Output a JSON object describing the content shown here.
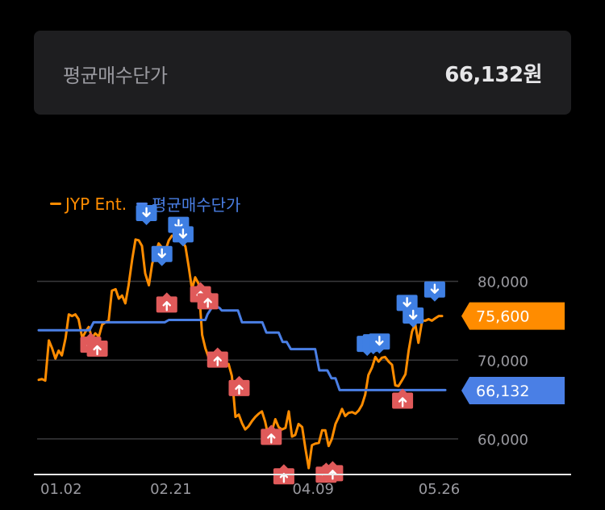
{
  "summary": {
    "label": "평균매수단가",
    "value": "66,132원"
  },
  "chart_data": {
    "type": "line",
    "title": "",
    "xlabel": "",
    "ylabel": "",
    "ylim": [
      56000,
      86000
    ],
    "x_range": [
      0,
      100
    ],
    "y_ticks": [
      {
        "value": 80000,
        "label": "80,000"
      },
      {
        "value": 70000,
        "label": "70,000"
      },
      {
        "value": 60000,
        "label": "60,000"
      }
    ],
    "x_ticks": [
      {
        "x": 0,
        "label": "01.02"
      },
      {
        "x": 27,
        "label": "02.21"
      },
      {
        "x": 62,
        "label": "04.09"
      },
      {
        "x": 93,
        "label": "05.26"
      }
    ],
    "grid": true,
    "legend_position": "top-left",
    "series": [
      {
        "name": "JYP Ent.",
        "color": "#ff8c00",
        "points": [
          [
            0,
            67500
          ],
          [
            0.8,
            67600
          ],
          [
            1.6,
            67400
          ],
          [
            2.5,
            72500
          ],
          [
            3.3,
            71500
          ],
          [
            4.1,
            70200
          ],
          [
            4.9,
            71200
          ],
          [
            5.7,
            70600
          ],
          [
            6.6,
            72800
          ],
          [
            7.4,
            75800
          ],
          [
            8.2,
            75600
          ],
          [
            9,
            75800
          ],
          [
            9.8,
            75200
          ],
          [
            10.7,
            72800
          ],
          [
            11.5,
            73600
          ],
          [
            12.3,
            74200
          ],
          [
            13.1,
            72800
          ],
          [
            13.9,
            73400
          ],
          [
            14.8,
            73000
          ],
          [
            15.6,
            74500
          ],
          [
            16.4,
            74800
          ],
          [
            17.2,
            75000
          ],
          [
            18,
            78800
          ],
          [
            18.9,
            79000
          ],
          [
            19.7,
            77800
          ],
          [
            20.5,
            78200
          ],
          [
            21.3,
            77200
          ],
          [
            22.1,
            79500
          ],
          [
            23,
            82800
          ],
          [
            23.8,
            85300
          ],
          [
            24.6,
            85200
          ],
          [
            25.4,
            84500
          ],
          [
            26.2,
            81000
          ],
          [
            27.1,
            79500
          ],
          [
            27.9,
            82200
          ],
          [
            28.7,
            83500
          ],
          [
            29.5,
            84800
          ],
          [
            30.3,
            84300
          ],
          [
            31.1,
            83800
          ],
          [
            32,
            85200
          ],
          [
            32.8,
            85800
          ],
          [
            33.6,
            85600
          ],
          [
            34.4,
            86200
          ],
          [
            35.2,
            85200
          ],
          [
            36.1,
            84400
          ],
          [
            36.9,
            81800
          ],
          [
            37.7,
            79000
          ],
          [
            38.5,
            80500
          ],
          [
            39.3,
            79700
          ],
          [
            40.2,
            73200
          ],
          [
            41,
            71500
          ],
          [
            41.8,
            70300
          ],
          [
            42.6,
            70600
          ],
          [
            43.4,
            70200
          ],
          [
            44.3,
            70800
          ],
          [
            45.1,
            70000
          ],
          [
            45.9,
            69400
          ],
          [
            46.7,
            69500
          ],
          [
            47.5,
            68000
          ],
          [
            48.4,
            62800
          ],
          [
            49.2,
            63100
          ],
          [
            50,
            62000
          ],
          [
            50.8,
            61200
          ],
          [
            51.6,
            61600
          ],
          [
            52.5,
            62300
          ],
          [
            53.3,
            62800
          ],
          [
            54.1,
            63200
          ],
          [
            54.9,
            63500
          ],
          [
            55.7,
            62200
          ],
          [
            56.6,
            60000
          ],
          [
            57.4,
            61100
          ],
          [
            58.2,
            62500
          ],
          [
            59,
            61500
          ],
          [
            59.8,
            61200
          ],
          [
            60.7,
            61400
          ],
          [
            61.5,
            63500
          ],
          [
            62.3,
            60300
          ],
          [
            63.1,
            60500
          ],
          [
            63.9,
            61900
          ],
          [
            64.8,
            61500
          ],
          [
            65.6,
            58800
          ],
          [
            66.4,
            56300
          ],
          [
            67.2,
            59200
          ],
          [
            68,
            59400
          ],
          [
            68.9,
            59500
          ],
          [
            69.7,
            61100
          ],
          [
            70.5,
            61100
          ],
          [
            71.3,
            59100
          ],
          [
            72.1,
            60000
          ],
          [
            73,
            61900
          ],
          [
            73.8,
            62800
          ],
          [
            74.6,
            63800
          ],
          [
            75.4,
            62900
          ],
          [
            76.2,
            63300
          ],
          [
            77.1,
            63400
          ],
          [
            77.9,
            63200
          ],
          [
            78.7,
            63600
          ],
          [
            79.5,
            64300
          ],
          [
            80.3,
            65600
          ],
          [
            81.1,
            68100
          ],
          [
            82,
            69100
          ],
          [
            82.8,
            70400
          ],
          [
            83.6,
            69800
          ],
          [
            84.4,
            70300
          ],
          [
            85.2,
            70400
          ],
          [
            86.1,
            69800
          ],
          [
            86.9,
            69400
          ],
          [
            87.7,
            66800
          ],
          [
            88.5,
            66700
          ],
          [
            89.3,
            67400
          ],
          [
            90.2,
            68200
          ],
          [
            91,
            71200
          ],
          [
            91.8,
            73600
          ],
          [
            92.6,
            74600
          ],
          [
            93.4,
            72200
          ],
          [
            94.3,
            75000
          ],
          [
            95.1,
            75000
          ],
          [
            95.9,
            75200
          ],
          [
            96.7,
            75000
          ],
          [
            97.5,
            75300
          ],
          [
            98.4,
            75600
          ],
          [
            99.2,
            75600
          ]
        ]
      },
      {
        "name": "평균매수단가",
        "color": "#4a7fe5",
        "points": [
          [
            0,
            73800
          ],
          [
            12.5,
            73800
          ],
          [
            13.5,
            74800
          ],
          [
            31,
            74800
          ],
          [
            32,
            75100
          ],
          [
            41,
            75100
          ],
          [
            41.5,
            75800
          ],
          [
            42.5,
            76600
          ],
          [
            43.5,
            76900
          ],
          [
            44.5,
            76600
          ],
          [
            45,
            76300
          ],
          [
            49,
            76300
          ],
          [
            50,
            74800
          ],
          [
            55,
            74800
          ],
          [
            56,
            73500
          ],
          [
            59,
            73500
          ],
          [
            60,
            72300
          ],
          [
            61,
            72300
          ],
          [
            62,
            71400
          ],
          [
            68,
            71400
          ],
          [
            69,
            68700
          ],
          [
            71,
            68700
          ],
          [
            72,
            67700
          ],
          [
            73,
            67700
          ],
          [
            74,
            66200
          ],
          [
            100,
            66200
          ]
        ]
      }
    ],
    "markers": [
      {
        "type": "sell",
        "x": 26.5,
        "y": 86000
      },
      {
        "type": "sell",
        "x": 30.3,
        "y": 80800
      },
      {
        "type": "sell",
        "x": 34.4,
        "y": 84500
      },
      {
        "type": "sell",
        "x": 35.5,
        "y": 83300
      },
      {
        "type": "sell",
        "x": 80.8,
        "y": 69400
      },
      {
        "type": "sell",
        "x": 82.3,
        "y": 69600
      },
      {
        "type": "sell",
        "x": 83.8,
        "y": 69700
      },
      {
        "type": "sell",
        "x": 90.6,
        "y": 74600
      },
      {
        "type": "sell",
        "x": 92.1,
        "y": 73000
      },
      {
        "type": "sell",
        "x": 97.4,
        "y": 76300
      },
      {
        "type": "buy",
        "x": 12.8,
        "y": 73700
      },
      {
        "type": "buy",
        "x": 14.4,
        "y": 73200
      },
      {
        "type": "buy",
        "x": 31.5,
        "y": 78800
      },
      {
        "type": "buy",
        "x": 39.8,
        "y": 80100
      },
      {
        "type": "buy",
        "x": 41.6,
        "y": 79200
      },
      {
        "type": "buy",
        "x": 44,
        "y": 71800
      },
      {
        "type": "buy",
        "x": 49.3,
        "y": 68200
      },
      {
        "type": "buy",
        "x": 57.2,
        "y": 62000
      },
      {
        "type": "buy",
        "x": 60.3,
        "y": 57000
      },
      {
        "type": "buy",
        "x": 70.7,
        "y": 57200
      },
      {
        "type": "buy",
        "x": 72.3,
        "y": 57400
      },
      {
        "type": "buy",
        "x": 89.5,
        "y": 66600
      }
    ],
    "value_tags": [
      {
        "series": "JYP Ent.",
        "label": "75,600",
        "value": 75600,
        "color": "#ff8c00"
      },
      {
        "series": "평균매수단가",
        "label": "66,132",
        "value": 66132,
        "color": "#4a7fe5"
      }
    ]
  }
}
